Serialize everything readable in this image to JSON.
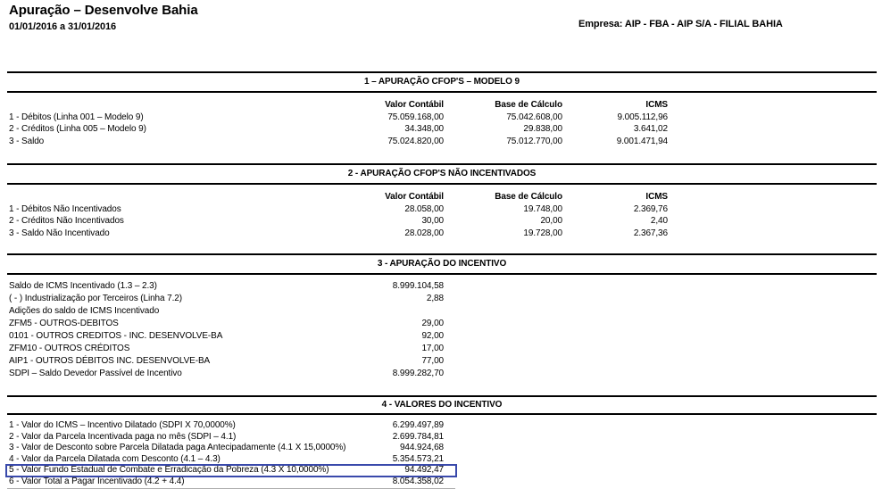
{
  "header": {
    "title": "Apuração – Desenvolve Bahia",
    "period": "01/01/2016 a 31/01/2016",
    "company": "Empresa: AIP - FBA - AIP S/A - FILIAL BAHIA"
  },
  "highlight_color": "#3949ab",
  "sections": [
    {
      "title": "1 – APURAÇÃO CFOP'S – MODELO 9",
      "columns": [
        "Valor Contábil",
        "Base de Cálculo",
        "ICMS"
      ],
      "rows": [
        {
          "label": "1 - Débitos (Linha 001 – Modelo 9)",
          "values": [
            "75.059.168,00",
            "75.042.608,00",
            "9.005.112,96"
          ]
        },
        {
          "label": "2 - Créditos (Linha 005 – Modelo 9)",
          "values": [
            "34.348,00",
            "29.838,00",
            "3.641,02"
          ]
        },
        {
          "label": "3 - Saldo",
          "values": [
            "75.024.820,00",
            "75.012.770,00",
            "9.001.471,94"
          ]
        }
      ]
    },
    {
      "title": "2 - APURAÇÃO CFOP'S NÃO INCENTIVADOS",
      "columns": [
        "Valor Contábil",
        "Base de Cálculo",
        "ICMS"
      ],
      "rows": [
        {
          "label": "1 - Débitos Não Incentivados",
          "values": [
            "28.058,00",
            "19.748,00",
            "2.369,76"
          ]
        },
        {
          "label": "2 - Créditos Não Incentivados",
          "values": [
            "30,00",
            "20,00",
            "2,40"
          ]
        },
        {
          "label": "3 - Saldo Não Incentivado",
          "values": [
            "28.028,00",
            "19.728,00",
            "2.367,36"
          ]
        }
      ]
    },
    {
      "title": "3 - APURAÇÃO DO INCENTIVO",
      "columns": [],
      "rows": [
        {
          "label": "Saldo de ICMS Incentivado (1.3 – 2.3)",
          "values": [
            "8.999.104,58"
          ]
        },
        {
          "label": "( - ) Industrialização por Terceiros (Linha 7.2)",
          "values": [
            "2,88"
          ]
        },
        {
          "label": "Adições do saldo de ICMS Incentivado",
          "values": [
            ""
          ]
        },
        {
          "label": "ZFM5 - OUTROS-DEBITOS",
          "values": [
            "29,00"
          ]
        },
        {
          "label": "0101 - OUTROS CREDITOS - INC. DESENVOLVE-BA",
          "values": [
            "92,00"
          ]
        },
        {
          "label": "ZFM10 - OUTROS CRÉDITOS",
          "values": [
            "17,00"
          ]
        },
        {
          "label": "AIP1 - OUTROS DÉBITOS INC. DESENVOLVE-BA",
          "values": [
            "77,00"
          ]
        },
        {
          "label": "SDPI – Saldo Devedor Passível de Incentivo",
          "values": [
            "8.999.282,70"
          ]
        }
      ]
    },
    {
      "title": "4 - VALORES DO INCENTIVO",
      "columns": [],
      "rows": [
        {
          "label": "1 - Valor do ICMS – Incentivo Dilatado (SDPI X 70,0000%)",
          "values": [
            "6.299.497,89"
          ]
        },
        {
          "label": "2 - Valor da Parcela Incentivada paga no mês (SDPI – 4.1)",
          "values": [
            "2.699.784,81"
          ]
        },
        {
          "label": "3 - Valor de Desconto sobre Parcela Dilatada paga Antecipadamente (4.1 X 15,0000%)",
          "values": [
            "944.924,68"
          ]
        },
        {
          "label": "4 - Valor da Parcela Dilatada com Desconto (4.1 – 4.3)",
          "values": [
            "5.354.573,21"
          ]
        },
        {
          "label": "5 - Valor Fundo Estadual de Combate e Erradicação da Pobreza (4.3 X 10,0000%)",
          "values": [
            "94.492,47"
          ],
          "highlighted": true
        },
        {
          "label": "6 - Valor Total a Pagar Incentivado (4.2 + 4.4)",
          "values": [
            "8.054.358,02"
          ]
        }
      ],
      "bottom_rule": true
    }
  ]
}
